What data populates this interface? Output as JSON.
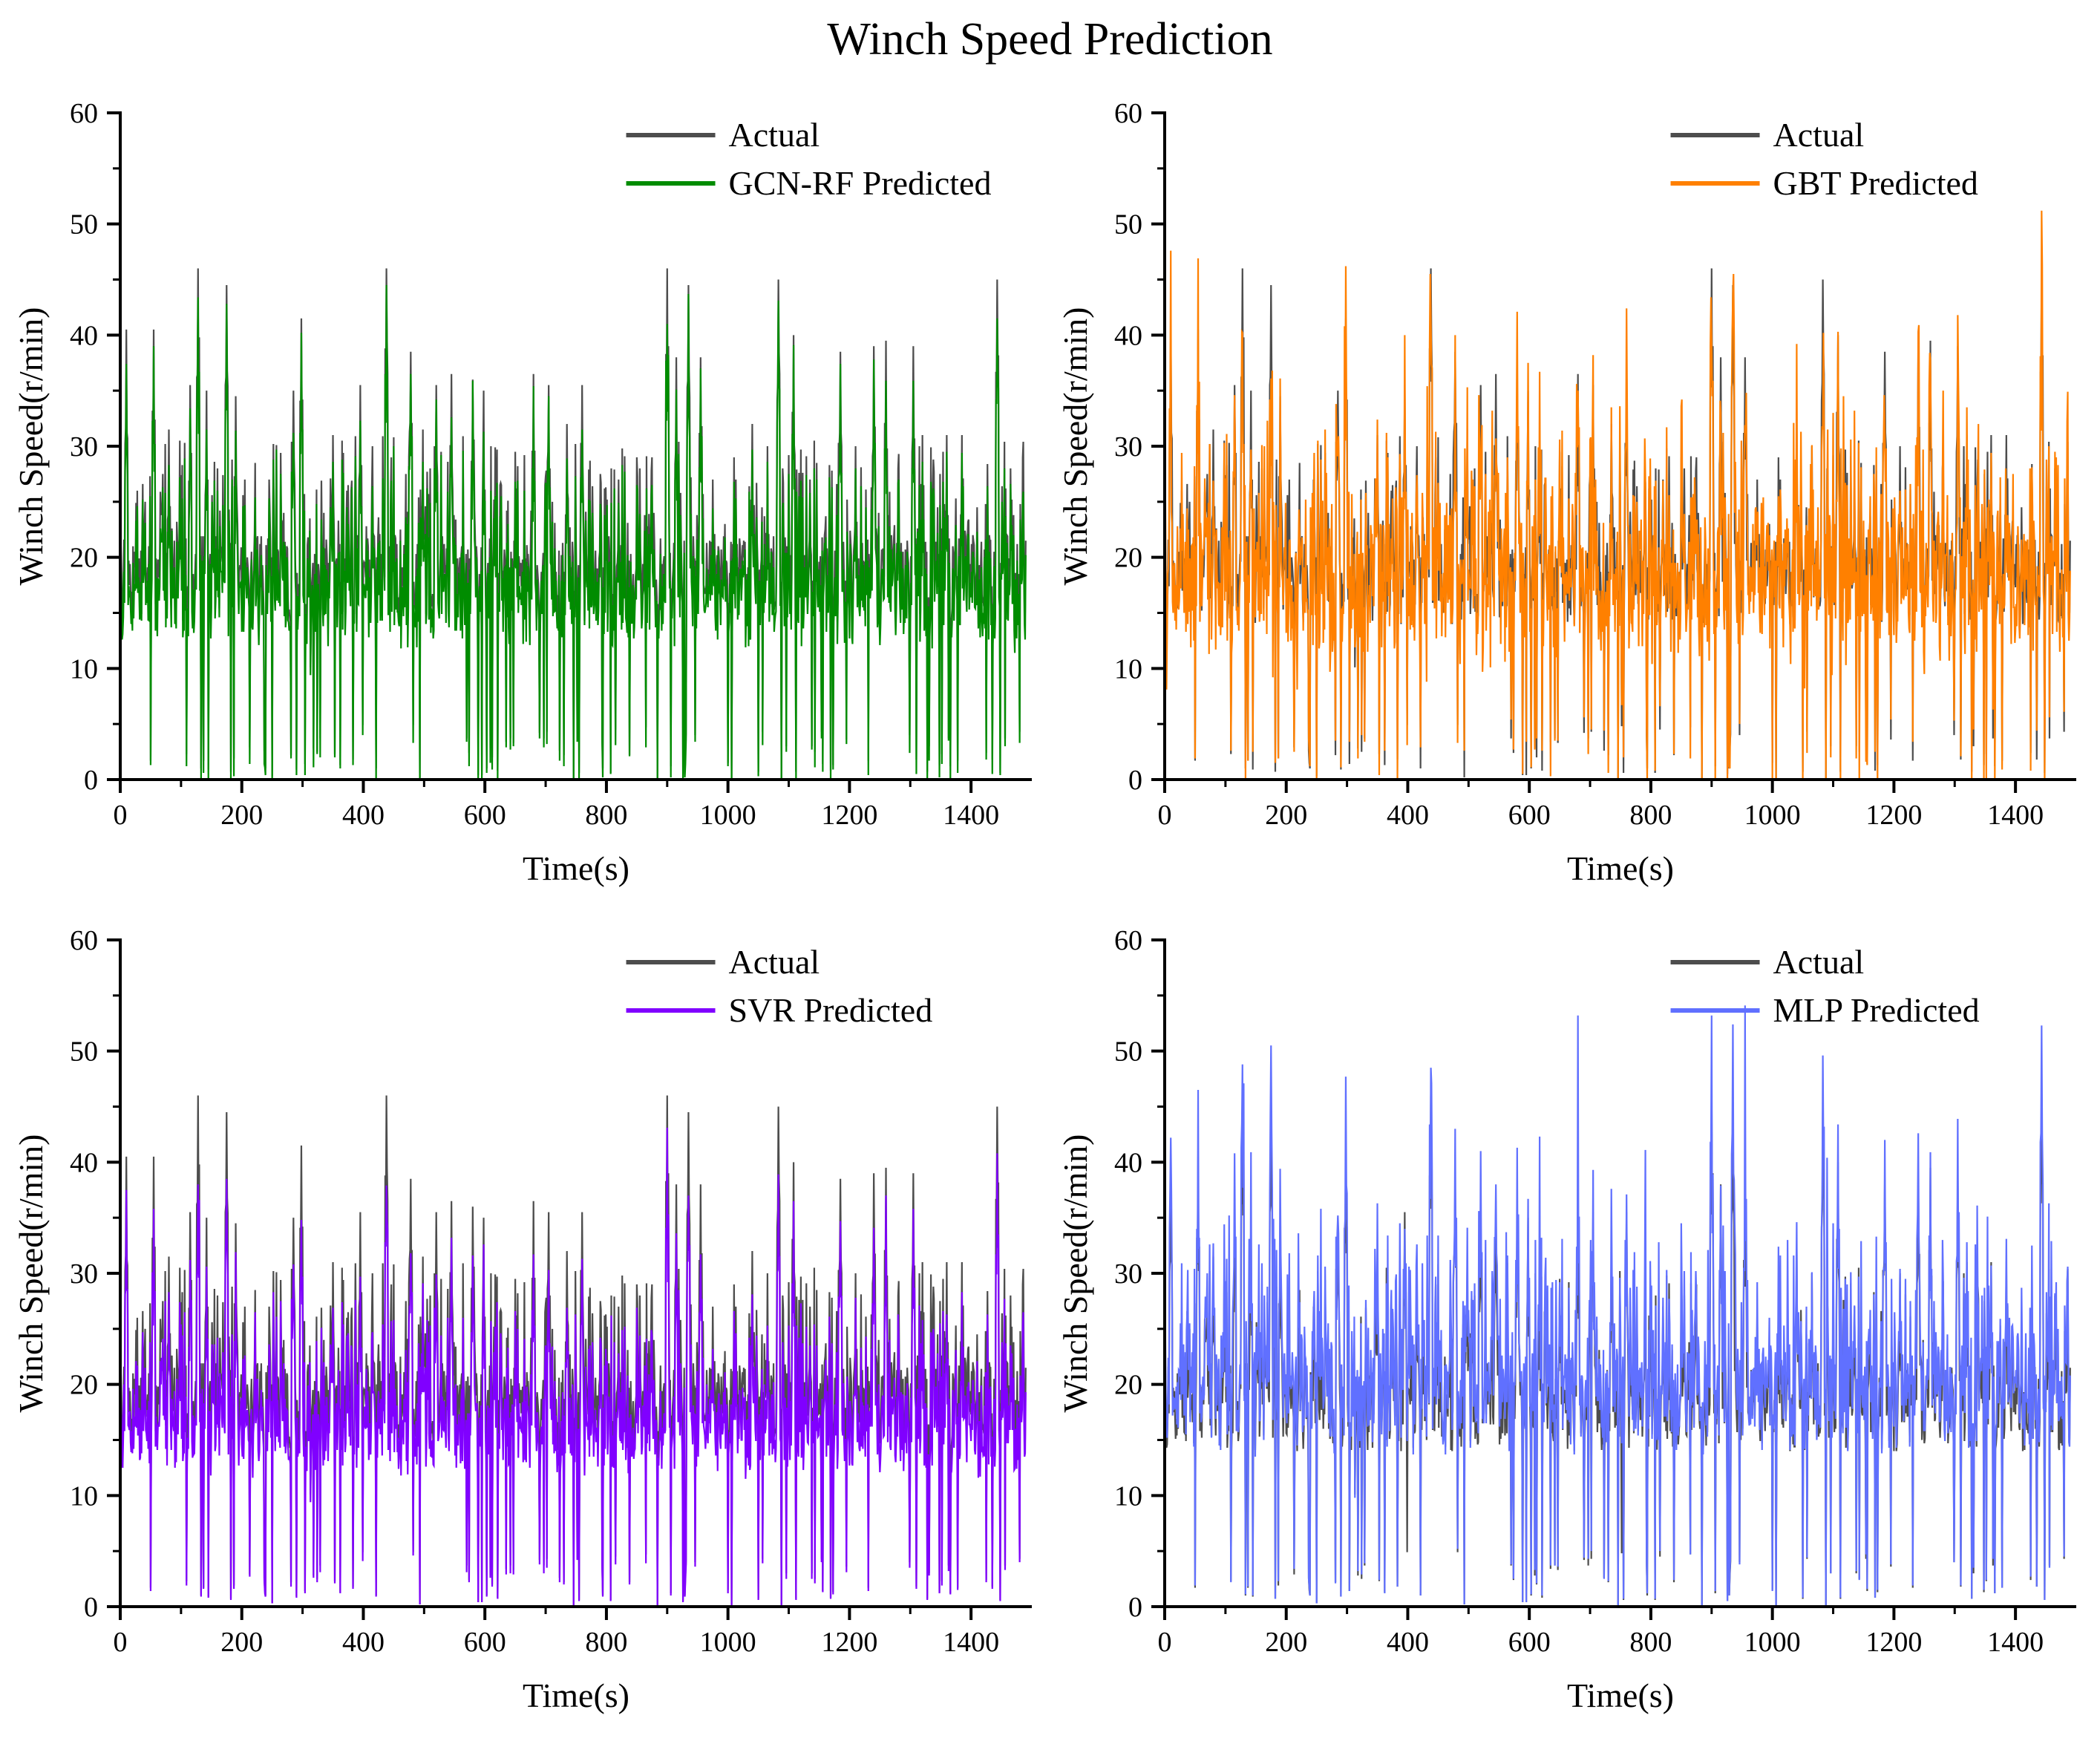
{
  "figure_title": "Winch Speed Prediction",
  "chart_data": [
    {
      "type": "line",
      "panel": "top-left",
      "title": "",
      "xlabel": "Time(s)",
      "ylabel": "Winch Speed(r/min)",
      "xlim": [
        0,
        1500
      ],
      "ylim": [
        0,
        60
      ],
      "xticks": [
        0,
        200,
        400,
        600,
        800,
        1000,
        1200,
        1400
      ],
      "yticks": [
        0,
        10,
        20,
        30,
        40,
        50,
        60
      ],
      "legend_position": "top-right",
      "series": [
        {
          "name": "Actual",
          "color": "#4d4d4d",
          "values": []
        },
        {
          "name": "GCN-RF Predicted",
          "color": "#008c00",
          "values": []
        }
      ]
    },
    {
      "type": "line",
      "panel": "top-right",
      "title": "",
      "xlabel": "Time(s)",
      "ylabel": "Winch Speed(r/min)",
      "xlim": [
        0,
        1500
      ],
      "ylim": [
        0,
        60
      ],
      "xticks": [
        0,
        200,
        400,
        600,
        800,
        1000,
        1200,
        1400
      ],
      "yticks": [
        0,
        10,
        20,
        30,
        40,
        50,
        60
      ],
      "legend_position": "top-right",
      "series": [
        {
          "name": "Actual",
          "color": "#4d4d4d",
          "values": []
        },
        {
          "name": "GBT Predicted",
          "color": "#ff8000",
          "values": []
        }
      ]
    },
    {
      "type": "line",
      "panel": "bottom-left",
      "title": "",
      "xlabel": "Time(s)",
      "ylabel": "Winch Speed(r/min)",
      "xlim": [
        0,
        1500
      ],
      "ylim": [
        0,
        60
      ],
      "xticks": [
        0,
        200,
        400,
        600,
        800,
        1000,
        1200,
        1400
      ],
      "yticks": [
        0,
        10,
        20,
        30,
        40,
        50,
        60
      ],
      "legend_position": "top-right",
      "series": [
        {
          "name": "Actual",
          "color": "#4d4d4d",
          "values": []
        },
        {
          "name": "SVR Predicted",
          "color": "#8000ff",
          "values": []
        }
      ]
    },
    {
      "type": "line",
      "panel": "bottom-right",
      "title": "",
      "xlabel": "Time(s)",
      "ylabel": "Winch Speed(r/min)",
      "xlim": [
        0,
        1500
      ],
      "ylim": [
        0,
        60
      ],
      "xticks": [
        0,
        200,
        400,
        600,
        800,
        1000,
        1200,
        1400
      ],
      "yticks": [
        0,
        10,
        20,
        30,
        40,
        50,
        60
      ],
      "legend_position": "top-right",
      "series": [
        {
          "name": "Actual",
          "color": "#4d4d4d",
          "values": []
        },
        {
          "name": "MLP Predicted",
          "color": "#6070ff",
          "values": []
        }
      ]
    }
  ],
  "actual_peaks": [
    [
      10,
      40.5
    ],
    [
      28,
      26
    ],
    [
      40,
      23
    ],
    [
      55,
      40.5
    ],
    [
      70,
      27.5
    ],
    [
      80,
      31.5
    ],
    [
      98,
      30.5
    ],
    [
      115,
      35.5
    ],
    [
      128,
      46
    ],
    [
      142,
      35
    ],
    [
      160,
      28
    ],
    [
      175,
      44.5
    ],
    [
      190,
      34.5
    ],
    [
      205,
      27
    ],
    [
      222,
      28.5
    ],
    [
      245,
      27
    ],
    [
      265,
      23
    ],
    [
      285,
      35
    ],
    [
      298,
      41.5
    ],
    [
      315,
      17.5
    ],
    [
      335,
      24
    ],
    [
      350,
      31
    ],
    [
      375,
      26.5
    ],
    [
      395,
      35.5
    ],
    [
      415,
      30
    ],
    [
      438,
      46
    ],
    [
      458,
      15
    ],
    [
      478,
      38.5
    ],
    [
      498,
      31.5
    ],
    [
      520,
      35.5
    ],
    [
      545,
      36.5
    ],
    [
      580,
      36
    ],
    [
      598,
      35
    ],
    [
      625,
      26.5
    ],
    [
      650,
      29.5
    ],
    [
      680,
      36.5
    ],
    [
      705,
      35.5
    ],
    [
      735,
      32
    ],
    [
      760,
      35.5
    ],
    [
      790,
      27.5
    ],
    [
      820,
      27
    ],
    [
      855,
      28
    ],
    [
      875,
      29
    ],
    [
      900,
      46
    ],
    [
      915,
      38
    ],
    [
      935,
      44.5
    ],
    [
      955,
      38
    ],
    [
      975,
      27
    ],
    [
      995,
      23
    ],
    [
      1010,
      29
    ],
    [
      1040,
      32
    ],
    [
      1065,
      30
    ],
    [
      1083,
      45
    ],
    [
      1108,
      40
    ],
    [
      1135,
      27
    ],
    [
      1160,
      22.5
    ],
    [
      1185,
      38.5
    ],
    [
      1210,
      30
    ],
    [
      1240,
      39
    ],
    [
      1260,
      39.5
    ],
    [
      1280,
      28
    ],
    [
      1305,
      39
    ],
    [
      1320,
      31
    ],
    [
      1345,
      24.5
    ],
    [
      1360,
      31
    ],
    [
      1385,
      31
    ],
    [
      1410,
      24.5
    ],
    [
      1430,
      22
    ],
    [
      1443,
      45
    ],
    [
      1465,
      28
    ],
    [
      1485,
      29
    ]
  ]
}
